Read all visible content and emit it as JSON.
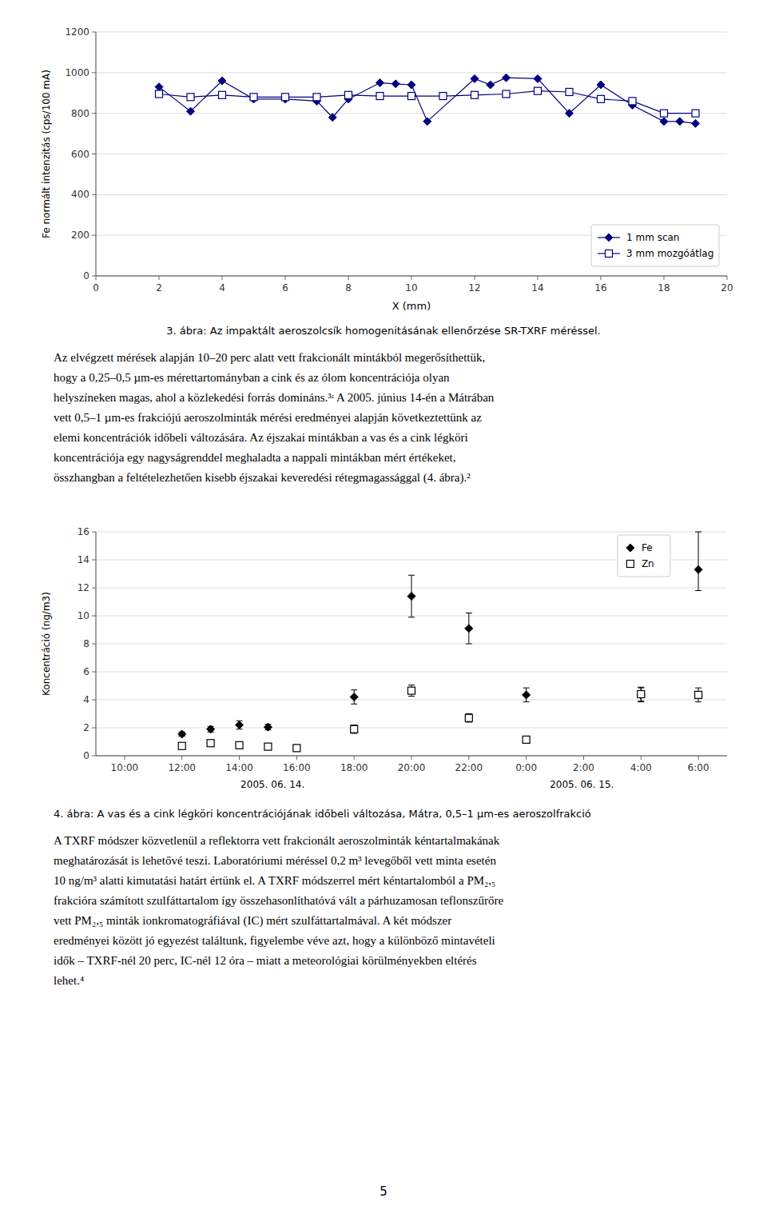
{
  "chart_data": [
    {
      "type": "line",
      "xlabel": "X (mm)",
      "ylabel": "Fe normált intenzitás (cps/100 mA)",
      "xlim": [
        0,
        20
      ],
      "ylim": [
        0,
        1200
      ],
      "xticks": [
        0,
        2,
        4,
        6,
        8,
        10,
        12,
        14,
        16,
        18,
        20
      ],
      "yticks": [
        0,
        200,
        400,
        600,
        800,
        1000,
        1200
      ],
      "grid": true,
      "legend": "lower right",
      "series": [
        {
          "name": "1 mm scan",
          "color": "#000080",
          "marker": "diamond",
          "x": [
            2,
            3,
            4,
            5,
            6,
            7,
            7.5,
            8,
            9,
            9.5,
            10,
            10.5,
            12,
            12.5,
            13,
            14,
            15,
            16,
            17,
            18,
            18.5,
            19
          ],
          "values": [
            930,
            810,
            960,
            870,
            870,
            860,
            780,
            870,
            950,
            945,
            940,
            760,
            970,
            940,
            975,
            970,
            800,
            940,
            840,
            760,
            760,
            750
          ]
        },
        {
          "name": "3 mm mozgóátlag",
          "color": "#000080",
          "marker": "open-square",
          "x": [
            2,
            3,
            4,
            5,
            6,
            7,
            8,
            9,
            10,
            11,
            12,
            13,
            14,
            15,
            16,
            17,
            18,
            19
          ],
          "values": [
            895,
            880,
            890,
            880,
            880,
            880,
            890,
            885,
            885,
            885,
            890,
            895,
            910,
            905,
            870,
            860,
            800,
            800
          ]
        }
      ],
      "caption": "3. ábra: Az impaktált aeroszolcsík homogenitásának ellenőrzése SR-TXRF méréssel.",
      "text_lines": [
        "Az elvégzett mérések alapján 10–20 perc alatt vett frakcionált mintákból megerősíthettük,",
        "hogy a 0,25–0,5 µm-es mérettartományban a cink és az ólom koncentrációja olyan",
        "helyszíneken magas, ahol a közlekedési forrás domináns.³ʴ A 2005. június 14-én a Mátrában",
        "vett 0,5–1 µm-es frakciójú aeroszolminták mérési eredményei alapján következtettünk az",
        "elemi koncentrációk időbeli változására. Az éjszakai mintákban a vas és a cink légköri",
        "koncentrációja egy nagyságrenddel meghaladta a nappali mintákban mért értékeket,",
        "összhangban a feltételezhetően kisebb éjszakai keveredési rétegmagassággal (4. ábra).²"
      ]
    },
    {
      "type": "scatter",
      "ylabel": "Koncentráció (ng/m3)",
      "xlim": [
        -1,
        21
      ],
      "ylim": [
        0,
        16
      ],
      "xticks": [
        {
          "value": 0,
          "label": "10:00"
        },
        {
          "value": 2,
          "label": "12:00"
        },
        {
          "value": 4,
          "label": "14:00"
        },
        {
          "value": 6,
          "label": "16:00"
        },
        {
          "value": 8,
          "label": "18:00"
        },
        {
          "value": 10,
          "label": "20:00"
        },
        {
          "value": 12,
          "label": "22:00"
        },
        {
          "value": 14,
          "label": "0:00"
        },
        {
          "value": 16,
          "label": "2:00"
        },
        {
          "value": 18,
          "label": "4:00"
        },
        {
          "value": 20,
          "label": "6:00"
        }
      ],
      "yticks": [
        0,
        2,
        4,
        6,
        8,
        10,
        12,
        14,
        16
      ],
      "grid": true,
      "legend": "upper right",
      "annotations": [
        "2005. 06. 14.",
        "2005. 06. 15."
      ],
      "series": [
        {
          "name": "Fe",
          "color": "#000000",
          "marker": "diamond",
          "x": [
            2,
            3,
            4,
            5,
            8,
            10,
            12,
            14,
            18,
            20
          ],
          "values": [
            1.55,
            1.9,
            2.2,
            2.05,
            4.2,
            11.4,
            9.1,
            4.35,
            4.35,
            13.3
          ],
          "error_lo": [
            0.15,
            0.2,
            0.3,
            0.2,
            0.5,
            1.5,
            1.1,
            0.5,
            0.5,
            1.5
          ],
          "error_hi": [
            0.15,
            0.2,
            0.3,
            0.2,
            0.5,
            1.5,
            1.1,
            0.5,
            0.5,
            2.7
          ]
        },
        {
          "name": "Zn",
          "color": "#000000",
          "marker": "open-square",
          "x": [
            2,
            3,
            4,
            5,
            6,
            8,
            10,
            12,
            14,
            18,
            20
          ],
          "values": [
            0.7,
            0.9,
            0.75,
            0.65,
            0.55,
            1.9,
            4.65,
            2.7,
            1.15,
            4.4,
            4.35
          ],
          "error_lo": [
            0.15,
            0.15,
            0.1,
            0.1,
            0.1,
            0.3,
            0.4,
            0.3,
            0.15,
            0.5,
            0.5
          ],
          "error_hi": [
            0.15,
            0.15,
            0.1,
            0.1,
            0.1,
            0.3,
            0.4,
            0.3,
            0.15,
            0.5,
            0.5
          ]
        }
      ],
      "caption": "4. ábra: A vas és a cink légköri koncentrációjának időbeli változása, Mátra, 0,5–1 µm-es aeroszolfrakció",
      "text_lines": [
        "A TXRF módszer közvetlenül a reflektorra vett frakcionált aeroszolminták kéntartalmakának",
        "meghatározását is lehetővé teszi. Laboratóriumi méréssel 0,2 m³ levegőből vett minta esetén",
        "10 ng/m³ alatti kimutatási határt értünk el. A TXRF módszerrel mért kéntartalomból a PM₂,₅",
        "frakcióra számított szulfáttartalom így összehasonlíthatóvá vált a párhuzamosan teflonszűrőre",
        "vett PM₂,₅ minták ionkromatográfiával (IC) mért szulfáttartalmával. A két módszer",
        "eredményei között jó egyezést találtunk, figyelembe véve azt, hogy a különböző mintavételi",
        "idők – TXRF-nél 20 perc, IC-nél 12 óra – miatt a meteorológiai körülményekben eltérés",
        "lehet.⁴"
      ]
    }
  ],
  "page_number": "5"
}
